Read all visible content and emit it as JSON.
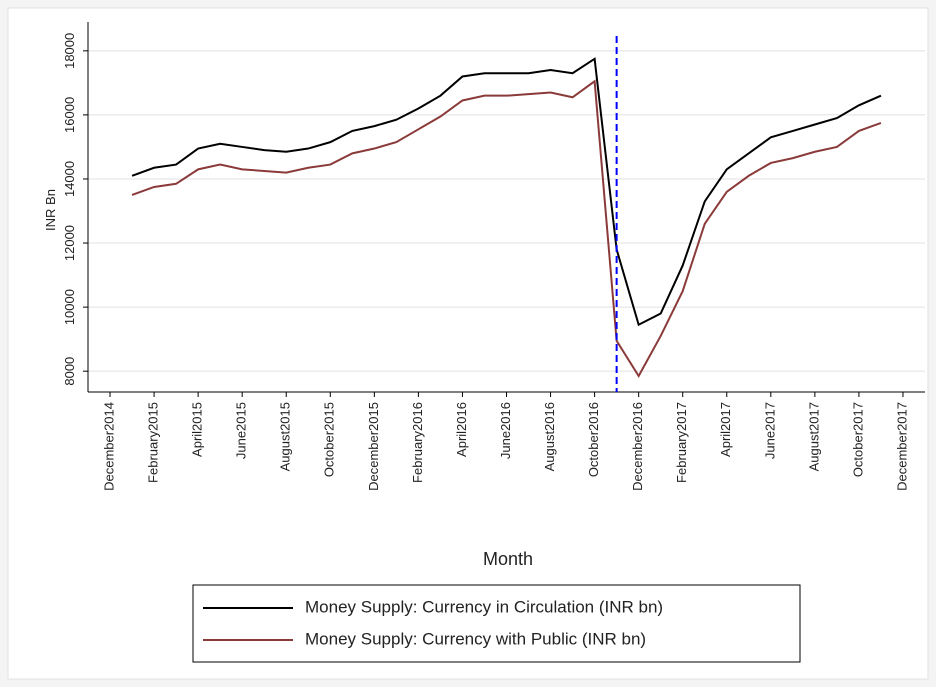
{
  "chart_data": {
    "type": "line",
    "x_label": "Month",
    "y_label": "INR Bn",
    "x": [
      "2015-01",
      "2015-02",
      "2015-03",
      "2015-04",
      "2015-05",
      "2015-06",
      "2015-07",
      "2015-08",
      "2015-09",
      "2015-10",
      "2015-11",
      "2015-12",
      "2016-01",
      "2016-02",
      "2016-03",
      "2016-04",
      "2016-05",
      "2016-06",
      "2016-07",
      "2016-08",
      "2016-09",
      "2016-10",
      "2016-11",
      "2016-12",
      "2017-01",
      "2017-02",
      "2017-03",
      "2017-04",
      "2017-05",
      "2017-06",
      "2017-07",
      "2017-08",
      "2017-09",
      "2017-10",
      "2017-11"
    ],
    "series": [
      {
        "name": "Money Supply: Currency in Circulation (INR bn)",
        "color": "#000000",
        "values": [
          14100,
          14350,
          14450,
          14950,
          15100,
          15000,
          14900,
          14850,
          14950,
          15150,
          15500,
          15650,
          15850,
          16200,
          16600,
          17200,
          17300,
          17300,
          17300,
          17400,
          17300,
          17750,
          11800,
          9450,
          9800,
          11300,
          13300,
          14300,
          14800,
          15300,
          15500,
          15700,
          15900,
          16300,
          16600
        ]
      },
      {
        "name": "Money Supply: Currency with Public (INR bn)",
        "color": "#8b3a3a",
        "values": [
          13500,
          13750,
          13850,
          14300,
          14450,
          14300,
          14250,
          14200,
          14350,
          14450,
          14800,
          14950,
          15150,
          15550,
          15950,
          16450,
          16600,
          16600,
          16650,
          16700,
          16550,
          17050,
          8950,
          7850,
          9100,
          10500,
          12600,
          13600,
          14100,
          14500,
          14650,
          14850,
          15000,
          15500,
          15750
        ]
      }
    ],
    "xlim": [
      "2014-11",
      "2018-01"
    ],
    "xticks": [
      {
        "value": "2014-12",
        "label": "December2014"
      },
      {
        "value": "2015-02",
        "label": "February2015"
      },
      {
        "value": "2015-04",
        "label": "April2015"
      },
      {
        "value": "2015-06",
        "label": "June2015"
      },
      {
        "value": "2015-08",
        "label": "August2015"
      },
      {
        "value": "2015-10",
        "label": "October2015"
      },
      {
        "value": "2015-12",
        "label": "December2015"
      },
      {
        "value": "2016-02",
        "label": "February2016"
      },
      {
        "value": "2016-04",
        "label": "April2016"
      },
      {
        "value": "2016-06",
        "label": "June2016"
      },
      {
        "value": "2016-08",
        "label": "August2016"
      },
      {
        "value": "2016-10",
        "label": "October2016"
      },
      {
        "value": "2016-12",
        "label": "December2016"
      },
      {
        "value": "2017-02",
        "label": "February2017"
      },
      {
        "value": "2017-04",
        "label": "April2017"
      },
      {
        "value": "2017-06",
        "label": "June2017"
      },
      {
        "value": "2017-08",
        "label": "August2017"
      },
      {
        "value": "2017-10",
        "label": "October2017"
      },
      {
        "value": "2017-12",
        "label": "December2017"
      }
    ],
    "ylim": [
      7350,
      18900
    ],
    "yticks": [
      8000,
      10000,
      12000,
      14000,
      16000,
      18000
    ],
    "grid": true,
    "vline": {
      "x": "2016-11",
      "color": "#0000ff",
      "dashed": true
    },
    "legend": "bottom"
  }
}
